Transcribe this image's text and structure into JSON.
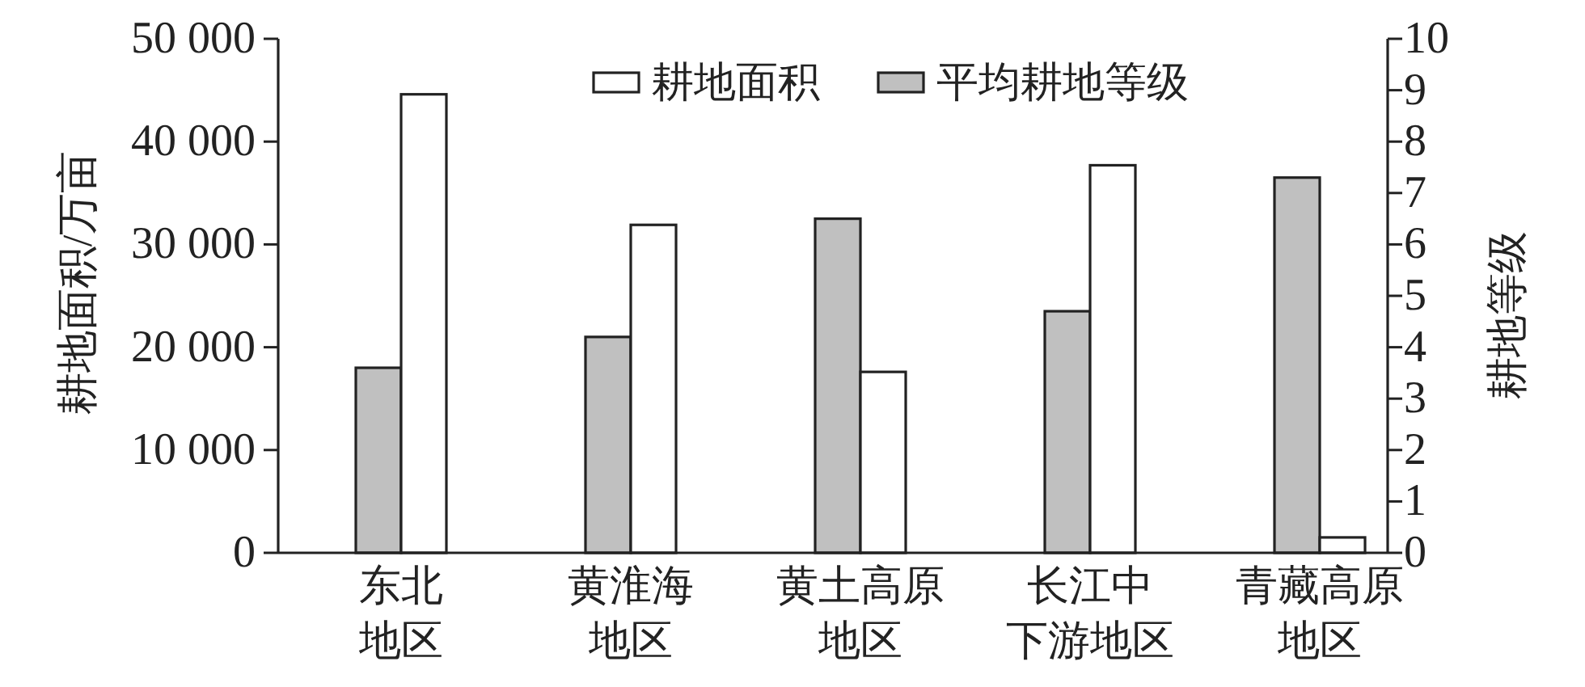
{
  "chart_data": {
    "type": "bar",
    "categories": [
      "东北地区",
      "黄淮海地区",
      "黄土高原地区",
      "长江中下游地区",
      "青藏高原地区"
    ],
    "series": [
      {
        "name": "平均耕地等级",
        "color": "#c0c0c0",
        "values": [
          3.6,
          4.2,
          6.5,
          4.7,
          7.3
        ],
        "axis": "y2"
      },
      {
        "name": "耕地面积",
        "color": "#ffffff",
        "values": [
          44600,
          31900,
          17600,
          37700,
          1500
        ]
      }
    ],
    "ylabel": "耕地面积/万亩",
    "y2label": "耕地等级",
    "ylim": [
      0,
      50000
    ],
    "yticks": [
      0,
      {
        "value": 10000,
        "label": "10 000"
      },
      {
        "value": 20000,
        "label": "20 000"
      },
      {
        "value": 30000,
        "label": "30 000"
      },
      {
        "value": 40000,
        "label": "40 000"
      },
      {
        "value": 50000,
        "label": "50 000"
      }
    ],
    "y2lim": [
      0,
      10
    ],
    "y2ticks": [
      0,
      1,
      2,
      3,
      4,
      5,
      6,
      7,
      8,
      9,
      10
    ],
    "legend": "top"
  }
}
